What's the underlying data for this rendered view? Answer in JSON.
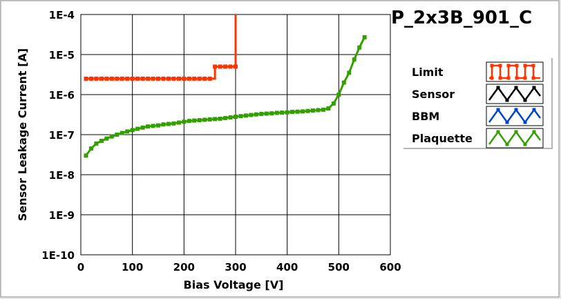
{
  "chart_data": {
    "type": "line",
    "title": "P_2x3B_901_C",
    "xlabel": "Bias Voltage [V]",
    "ylabel": "Sensor Leakage Current [A]",
    "xlim": [
      0,
      600
    ],
    "ylim": [
      1e-10,
      0.0001
    ],
    "y_scale": "log",
    "grid": true,
    "legend_position": "right",
    "x_ticks": [
      0,
      100,
      200,
      300,
      400,
      500,
      600
    ],
    "x_tick_labels": [
      "0",
      "100",
      "200",
      "300",
      "400",
      "500",
      "600"
    ],
    "y_ticks": [
      1e-10,
      1e-09,
      1e-08,
      1e-07,
      1e-06,
      1e-05,
      0.0001
    ],
    "y_tick_labels": [
      "1E-10",
      "1E-9",
      "1E-8",
      "1E-7",
      "1E-6",
      "1E-5",
      "1E-4"
    ],
    "series": [
      {
        "name": "Limit",
        "color": "#ff3300",
        "step": true,
        "x": [
          10,
          20,
          30,
          40,
          50,
          60,
          70,
          80,
          90,
          100,
          110,
          120,
          130,
          140,
          150,
          160,
          170,
          180,
          190,
          200,
          210,
          220,
          230,
          240,
          250,
          260,
          270,
          280,
          290,
          300,
          300
        ],
        "y": [
          2.5e-06,
          2.5e-06,
          2.5e-06,
          2.5e-06,
          2.5e-06,
          2.5e-06,
          2.5e-06,
          2.5e-06,
          2.5e-06,
          2.5e-06,
          2.5e-06,
          2.5e-06,
          2.5e-06,
          2.5e-06,
          2.5e-06,
          2.5e-06,
          2.5e-06,
          2.5e-06,
          2.5e-06,
          2.5e-06,
          2.5e-06,
          2.5e-06,
          2.5e-06,
          2.5e-06,
          2.5e-06,
          5e-06,
          5e-06,
          5e-06,
          5e-06,
          5e-06,
          0.0001
        ]
      },
      {
        "name": "Sensor",
        "color": "#000000",
        "x": [],
        "y": []
      },
      {
        "name": "BBM",
        "color": "#0044cc",
        "x": [],
        "y": []
      },
      {
        "name": "Plaquette",
        "color": "#33a000",
        "x": [
          10,
          20,
          30,
          40,
          50,
          60,
          70,
          80,
          90,
          100,
          110,
          120,
          130,
          140,
          150,
          160,
          170,
          180,
          190,
          200,
          210,
          220,
          230,
          240,
          250,
          260,
          270,
          280,
          290,
          300,
          310,
          320,
          330,
          340,
          350,
          360,
          370,
          380,
          390,
          400,
          410,
          420,
          430,
          440,
          450,
          460,
          470,
          480,
          490,
          500,
          510,
          520,
          530,
          540,
          550
        ],
        "y": [
          3e-08,
          4.5e-08,
          6e-08,
          7e-08,
          8e-08,
          9e-08,
          1e-07,
          1.1e-07,
          1.2e-07,
          1.3e-07,
          1.4e-07,
          1.5e-07,
          1.6e-07,
          1.65e-07,
          1.7e-07,
          1.8e-07,
          1.85e-07,
          1.9e-07,
          2e-07,
          2.1e-07,
          2.2e-07,
          2.25e-07,
          2.3e-07,
          2.35e-07,
          2.4e-07,
          2.45e-07,
          2.5e-07,
          2.6e-07,
          2.7e-07,
          2.8e-07,
          2.9e-07,
          3e-07,
          3.1e-07,
          3.2e-07,
          3.3e-07,
          3.35e-07,
          3.4e-07,
          3.5e-07,
          3.55e-07,
          3.6e-07,
          3.7e-07,
          3.75e-07,
          3.8e-07,
          3.9e-07,
          4e-07,
          4.1e-07,
          4.2e-07,
          4.5e-07,
          6e-07,
          1e-06,
          2e-06,
          3.5e-06,
          7.5e-06,
          1.5e-05,
          2.7e-05
        ]
      }
    ]
  }
}
